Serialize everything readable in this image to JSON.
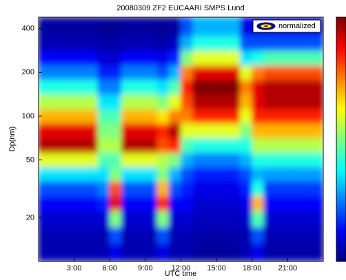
{
  "chart_data": {
    "type": "contour",
    "title": "20080309 ZF2 EUCAARI SMPS Lund",
    "xlabel": "UTC time",
    "ylabel": "Dp(nm)",
    "legend": "normalized",
    "ylog": true,
    "xlim": [
      0,
      24
    ],
    "ylim": [
      10,
      480
    ],
    "xticks": [
      {
        "value": 3,
        "label": "3:00"
      },
      {
        "value": 6,
        "label": "6:00"
      },
      {
        "value": 9,
        "label": "9:00"
      },
      {
        "value": 12,
        "label": "12:00"
      },
      {
        "value": 15,
        "label": "15:00"
      },
      {
        "value": 18,
        "label": "18:00"
      },
      {
        "value": 21,
        "label": "21:00"
      }
    ],
    "yticks": [
      20,
      50,
      100,
      200,
      400
    ],
    "x": [
      0.5,
      1.5,
      2.5,
      3.5,
      4.5,
      5.5,
      6.5,
      7.5,
      8.5,
      9.5,
      10.5,
      11.5,
      12.5,
      13.5,
      14.5,
      15.5,
      16.5,
      17.5,
      18.5,
      19.5,
      20.5,
      21.5,
      22.5,
      23.5
    ],
    "y": [
      12,
      15,
      20,
      25,
      32,
      40,
      50,
      63,
      80,
      100,
      125,
      160,
      200,
      250,
      320,
      400
    ],
    "z": [
      [
        0.05,
        0.05,
        0.08,
        0.12,
        0.2,
        0.35,
        0.6,
        0.95,
        0.9,
        0.7,
        0.55,
        0.4,
        0.25,
        0.12,
        0.05,
        0.03
      ],
      [
        0.05,
        0.05,
        0.08,
        0.12,
        0.2,
        0.35,
        0.6,
        0.95,
        0.9,
        0.7,
        0.55,
        0.4,
        0.25,
        0.12,
        0.05,
        0.03
      ],
      [
        0.05,
        0.05,
        0.08,
        0.12,
        0.2,
        0.35,
        0.6,
        0.95,
        0.9,
        0.7,
        0.55,
        0.4,
        0.25,
        0.12,
        0.05,
        0.03
      ],
      [
        0.05,
        0.05,
        0.08,
        0.12,
        0.2,
        0.35,
        0.6,
        0.95,
        0.9,
        0.7,
        0.55,
        0.4,
        0.25,
        0.12,
        0.05,
        0.03
      ],
      [
        0.05,
        0.05,
        0.08,
        0.12,
        0.2,
        0.35,
        0.6,
        0.95,
        0.9,
        0.7,
        0.55,
        0.4,
        0.25,
        0.12,
        0.05,
        0.03
      ],
      [
        0.05,
        0.05,
        0.08,
        0.15,
        0.25,
        0.35,
        0.45,
        0.55,
        0.5,
        0.45,
        0.35,
        0.25,
        0.15,
        0.08,
        0.04,
        0.02
      ],
      [
        0.1,
        0.2,
        0.5,
        0.9,
        0.8,
        0.5,
        0.45,
        0.55,
        0.5,
        0.45,
        0.35,
        0.25,
        0.15,
        0.08,
        0.04,
        0.02
      ],
      [
        0.05,
        0.05,
        0.08,
        0.12,
        0.2,
        0.35,
        0.6,
        0.95,
        0.9,
        0.7,
        0.55,
        0.4,
        0.25,
        0.12,
        0.05,
        0.03
      ],
      [
        0.05,
        0.05,
        0.08,
        0.12,
        0.2,
        0.35,
        0.6,
        0.95,
        0.9,
        0.7,
        0.55,
        0.4,
        0.25,
        0.12,
        0.05,
        0.03
      ],
      [
        0.05,
        0.05,
        0.08,
        0.12,
        0.2,
        0.35,
        0.6,
        0.95,
        0.9,
        0.7,
        0.55,
        0.4,
        0.25,
        0.12,
        0.05,
        0.03
      ],
      [
        0.1,
        0.2,
        0.5,
        0.85,
        0.7,
        0.5,
        0.55,
        0.8,
        0.85,
        0.65,
        0.5,
        0.35,
        0.2,
        0.1,
        0.04,
        0.02
      ],
      [
        0.05,
        0.05,
        0.08,
        0.12,
        0.2,
        0.3,
        0.5,
        0.85,
        0.95,
        0.75,
        0.6,
        0.45,
        0.3,
        0.15,
        0.07,
        0.03
      ],
      [
        0.05,
        0.05,
        0.08,
        0.12,
        0.15,
        0.2,
        0.3,
        0.45,
        0.6,
        0.75,
        0.8,
        0.85,
        0.75,
        0.5,
        0.3,
        0.2
      ],
      [
        0.03,
        0.04,
        0.06,
        0.08,
        0.1,
        0.15,
        0.25,
        0.4,
        0.6,
        0.85,
        0.95,
        1,
        0.9,
        0.6,
        0.4,
        0.3
      ],
      [
        0.03,
        0.04,
        0.06,
        0.08,
        0.1,
        0.15,
        0.25,
        0.4,
        0.6,
        0.85,
        0.95,
        1,
        0.9,
        0.6,
        0.4,
        0.3
      ],
      [
        0.03,
        0.04,
        0.06,
        0.08,
        0.1,
        0.15,
        0.25,
        0.4,
        0.6,
        0.85,
        0.95,
        1,
        0.9,
        0.6,
        0.4,
        0.3
      ],
      [
        0.03,
        0.04,
        0.06,
        0.08,
        0.1,
        0.15,
        0.25,
        0.4,
        0.6,
        0.85,
        0.95,
        1,
        0.9,
        0.6,
        0.4,
        0.3
      ],
      [
        0.05,
        0.05,
        0.08,
        0.1,
        0.15,
        0.2,
        0.3,
        0.4,
        0.5,
        0.6,
        0.7,
        0.75,
        0.6,
        0.35,
        0.2,
        0.1
      ],
      [
        0.1,
        0.2,
        0.45,
        0.7,
        0.4,
        0.3,
        0.4,
        0.55,
        0.7,
        0.85,
        0.9,
        0.9,
        0.75,
        0.4,
        0.2,
        0.1
      ],
      [
        0.04,
        0.05,
        0.08,
        0.12,
        0.18,
        0.28,
        0.4,
        0.55,
        0.7,
        0.85,
        0.95,
        0.95,
        0.8,
        0.45,
        0.2,
        0.1
      ],
      [
        0.04,
        0.05,
        0.08,
        0.12,
        0.18,
        0.28,
        0.4,
        0.55,
        0.7,
        0.85,
        0.95,
        0.95,
        0.8,
        0.45,
        0.2,
        0.1
      ],
      [
        0.04,
        0.05,
        0.08,
        0.12,
        0.18,
        0.28,
        0.4,
        0.55,
        0.7,
        0.85,
        0.95,
        0.95,
        0.8,
        0.45,
        0.2,
        0.1
      ],
      [
        0.04,
        0.05,
        0.08,
        0.12,
        0.18,
        0.28,
        0.4,
        0.55,
        0.7,
        0.85,
        0.95,
        0.95,
        0.8,
        0.45,
        0.2,
        0.1
      ],
      [
        0.04,
        0.05,
        0.08,
        0.12,
        0.18,
        0.28,
        0.4,
        0.55,
        0.7,
        0.85,
        0.95,
        0.95,
        0.8,
        0.45,
        0.2,
        0.1
      ]
    ]
  }
}
